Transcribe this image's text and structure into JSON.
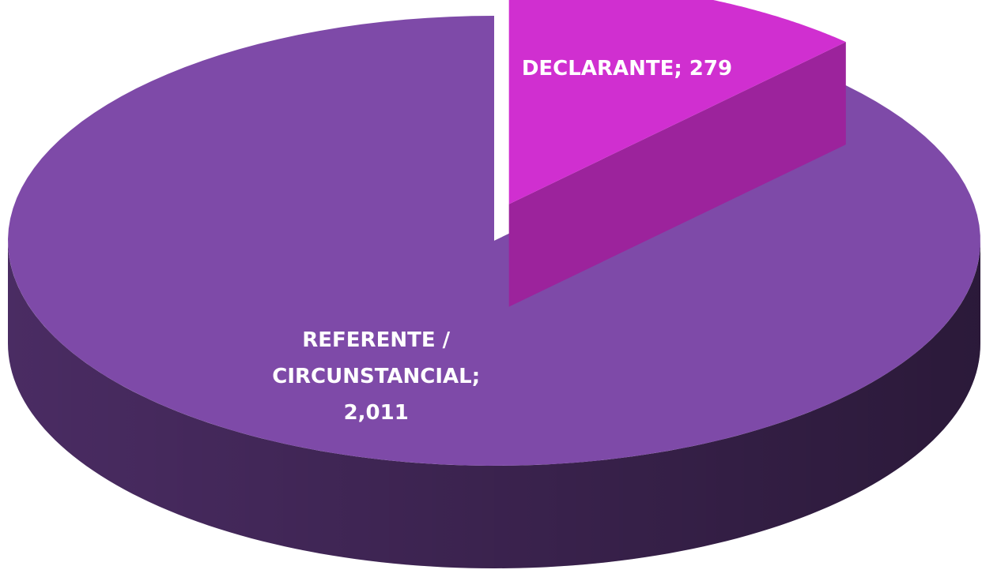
{
  "chart_data": {
    "type": "pie",
    "three_d": true,
    "values": [
      279,
      2011
    ],
    "value_labels": [
      "DECLARANTE; 279",
      "REFERENTE / CIRCUNSTANCIAL; 2,011"
    ],
    "colors": [
      "#d02fd0",
      "#7e4aa8"
    ],
    "explode": [
      true,
      false
    ]
  }
}
